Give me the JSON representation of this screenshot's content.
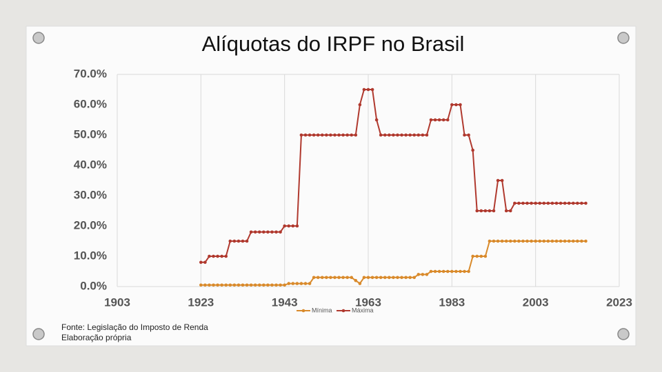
{
  "chart_data": {
    "type": "line",
    "title": "Alíquotas do IRPF no Brasil",
    "x": [
      1923,
      1924,
      1925,
      1926,
      1927,
      1928,
      1929,
      1930,
      1931,
      1932,
      1933,
      1934,
      1935,
      1936,
      1937,
      1938,
      1939,
      1940,
      1941,
      1942,
      1943,
      1944,
      1945,
      1946,
      1947,
      1948,
      1949,
      1950,
      1951,
      1952,
      1953,
      1954,
      1955,
      1956,
      1957,
      1958,
      1959,
      1960,
      1961,
      1962,
      1963,
      1964,
      1965,
      1966,
      1967,
      1968,
      1969,
      1970,
      1971,
      1972,
      1973,
      1974,
      1975,
      1976,
      1977,
      1978,
      1979,
      1980,
      1981,
      1982,
      1983,
      1984,
      1985,
      1986,
      1987,
      1988,
      1989,
      1990,
      1991,
      1992,
      1993,
      1994,
      1995,
      1996,
      1997,
      1998,
      1999,
      2000,
      2001,
      2002,
      2003,
      2004,
      2005,
      2006,
      2007,
      2008,
      2009,
      2010,
      2011,
      2012,
      2013,
      2014,
      2015
    ],
    "series": [
      {
        "name": "Mínima",
        "color": "#d98a2b",
        "values": [
          0.5,
          0.5,
          0.5,
          0.5,
          0.5,
          0.5,
          0.5,
          0.5,
          0.5,
          0.5,
          0.5,
          0.5,
          0.5,
          0.5,
          0.5,
          0.5,
          0.5,
          0.5,
          0.5,
          0.5,
          0.5,
          1,
          1,
          1,
          1,
          1,
          1,
          3,
          3,
          3,
          3,
          3,
          3,
          3,
          3,
          3,
          3,
          2,
          1,
          3,
          3,
          3,
          3,
          3,
          3,
          3,
          3,
          3,
          3,
          3,
          3,
          3,
          4,
          4,
          4,
          5,
          5,
          5,
          5,
          5,
          5,
          5,
          5,
          5,
          5,
          10,
          10,
          10,
          10,
          15,
          15,
          15,
          15,
          15,
          15,
          15,
          15,
          15,
          15,
          15,
          15,
          15,
          15,
          15,
          15,
          15,
          15,
          15,
          15,
          15,
          15,
          15,
          15
        ]
      },
      {
        "name": "Máxima",
        "color": "#b0392e",
        "values": [
          8,
          8,
          10,
          10,
          10,
          10,
          10,
          15,
          15,
          15,
          15,
          15,
          18,
          18,
          18,
          18,
          18,
          18,
          18,
          18,
          20,
          20,
          20,
          20,
          50,
          50,
          50,
          50,
          50,
          50,
          50,
          50,
          50,
          50,
          50,
          50,
          50,
          50,
          60,
          65,
          65,
          65,
          55,
          50,
          50,
          50,
          50,
          50,
          50,
          50,
          50,
          50,
          50,
          50,
          50,
          55,
          55,
          55,
          55,
          55,
          60,
          60,
          60,
          50,
          50,
          45,
          25,
          25,
          25,
          25,
          25,
          35,
          35,
          25,
          25,
          27.5,
          27.5,
          27.5,
          27.5,
          27.5,
          27.5,
          27.5,
          27.5,
          27.5,
          27.5,
          27.5,
          27.5,
          27.5,
          27.5,
          27.5,
          27.5,
          27.5,
          27.5
        ]
      }
    ],
    "xlim": [
      1903,
      2023
    ],
    "xticks": [
      1903,
      1923,
      1943,
      1963,
      1983,
      2003,
      2023
    ],
    "ylim": [
      0,
      70
    ],
    "yticks": [
      {
        "value": 0,
        "label": "0.0%"
      },
      {
        "value": 10,
        "label": "10.0%"
      },
      {
        "value": 20,
        "label": "20.0%"
      },
      {
        "value": 30,
        "label": "30.0%"
      },
      {
        "value": 40,
        "label": "40.0%"
      },
      {
        "value": 50,
        "label": "50.0%"
      },
      {
        "value": 60,
        "label": "60.0%"
      },
      {
        "value": 70,
        "label": "70.0%"
      }
    ],
    "grid": true,
    "legend": "bottom",
    "notes": [
      "Fonte: Legislação do Imposto de Renda",
      "Elaboração própria"
    ]
  }
}
